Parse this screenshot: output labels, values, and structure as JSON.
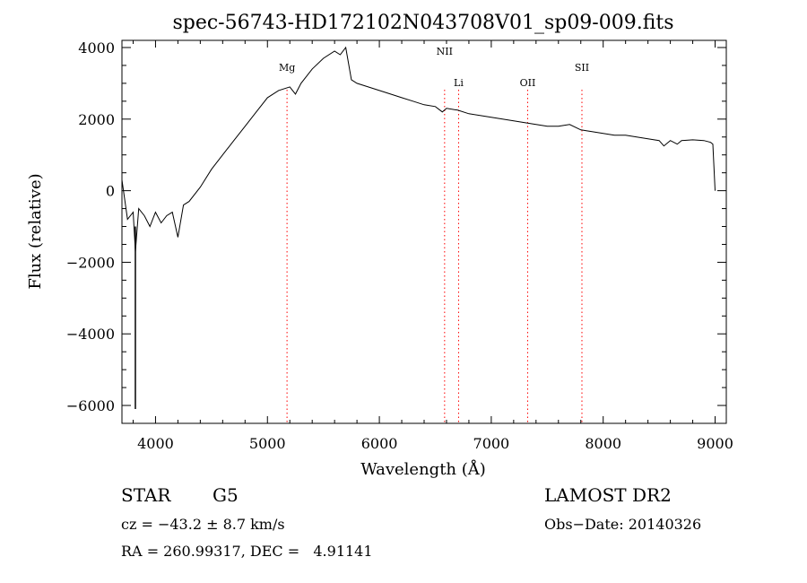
{
  "chart_data": {
    "type": "line",
    "title": "spec-56743-HD172102N043708V01_sp09-009.fits",
    "xlabel": "Wavelength (Å)",
    "ylabel": "Flux (relative)",
    "xlim": [
      3700,
      9100
    ],
    "ylim": [
      -6500,
      4200
    ],
    "x_ticks": [
      4000,
      5000,
      6000,
      7000,
      8000,
      9000
    ],
    "y_ticks": [
      -6000,
      -4000,
      -2000,
      0,
      2000,
      4000
    ],
    "x_tick_labels": [
      "4000",
      "5000",
      "6000",
      "7000",
      "8000",
      "9000"
    ],
    "y_tick_labels": [
      "−6000",
      "−4000",
      "−2000",
      "0",
      "2000",
      "4000"
    ],
    "grid": false,
    "series": [
      {
        "x": [
          3700,
          3750,
          3800,
          3820,
          3850,
          3900,
          3950,
          4000,
          4050,
          4100,
          4150,
          4200,
          4250,
          4300,
          4400,
          4500,
          4600,
          4700,
          4800,
          4900,
          5000,
          5100,
          5200,
          5250,
          5300,
          5400,
          5500,
          5600,
          5650,
          5700,
          5750,
          5800,
          5900,
          6000,
          6100,
          6200,
          6300,
          6400,
          6500,
          6563,
          6600,
          6700,
          6800,
          6900,
          7000,
          7100,
          7200,
          7300,
          7400,
          7500,
          7600,
          7700,
          7800,
          7900,
          8000,
          8100,
          8200,
          8300,
          8400,
          8500,
          8542,
          8600,
          8662,
          8700,
          8800,
          8900,
          8960,
          8980,
          9000
        ],
        "y": [
          300,
          -800,
          -600,
          -1700,
          -500,
          -700,
          -1000,
          -600,
          -900,
          -700,
          -600,
          -1300,
          -400,
          -300,
          100,
          600,
          1000,
          1400,
          1800,
          2200,
          2600,
          2800,
          2900,
          2700,
          3000,
          3400,
          3700,
          3900,
          3800,
          4000,
          3100,
          3000,
          2900,
          2800,
          2700,
          2600,
          2500,
          2400,
          2350,
          2200,
          2300,
          2250,
          2150,
          2100,
          2050,
          2000,
          1950,
          1900,
          1850,
          1800,
          1800,
          1850,
          1700,
          1650,
          1600,
          1550,
          1550,
          1500,
          1450,
          1400,
          1250,
          1400,
          1300,
          1400,
          1420,
          1400,
          1350,
          1300,
          0
        ]
      }
    ],
    "line_markers": [
      {
        "label": "Mg",
        "wavelength": 5175
      },
      {
        "label": "NII",
        "wavelength": 6583
      },
      {
        "label": "Li",
        "wavelength": 6708
      },
      {
        "label": "OII",
        "wavelength": 7325
      },
      {
        "label": "SII",
        "wavelength": 7810
      }
    ],
    "dip_artifact": {
      "x": 3820,
      "y_low": -6100
    },
    "line_color": "#000000",
    "marker_color": "#ff0000"
  },
  "info": {
    "class": "STAR",
    "subclass": "G5",
    "survey": "LAMOST DR2",
    "cz": "cz = −43.2 ± 8.7 km/s",
    "obs_date": "Obs−Date: 20140326",
    "radec": "RA = 260.99317, DEC =   4.91141"
  }
}
